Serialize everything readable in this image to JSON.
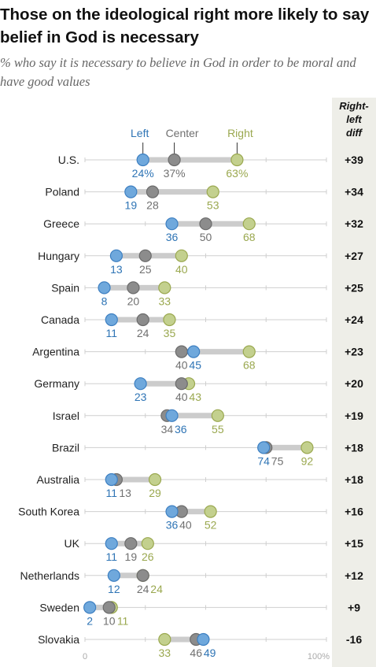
{
  "title": "Those on the ideological right more likely to say belief in God is necessary",
  "subtitle": "% who say it is necessary to believe in God in order to be moral and have good values",
  "colors": {
    "left": "#6fa8dc",
    "left_text": "#2e74b5",
    "center": "#8c8c8c",
    "center_text": "#707070",
    "right": "#c3d08e",
    "right_text": "#9aa84f",
    "diff_column": "#eeeee8"
  },
  "chart_data": {
    "type": "dot-plot",
    "title": "Those on the ideological right more likely to say belief in God is necessary",
    "subtitle": "% who say it is necessary to believe in God in order to be moral and have good values",
    "legend": [
      "Left",
      "Center",
      "Right"
    ],
    "diff_header": [
      "Right-",
      "left",
      "diff"
    ],
    "axis_labels": [
      "0",
      "100%"
    ],
    "xlim": [
      0,
      100
    ],
    "rows": [
      {
        "country": "U.S.",
        "left": 24,
        "center": 37,
        "right": 63,
        "left_label": "24%",
        "center_label": "37%",
        "right_label": "63%",
        "diff": "+39"
      },
      {
        "country": "Poland",
        "left": 19,
        "center": 28,
        "right": 53,
        "left_label": "19",
        "center_label": "28",
        "right_label": "53",
        "diff": "+34"
      },
      {
        "country": "Greece",
        "left": 36,
        "center": 50,
        "right": 68,
        "left_label": "36",
        "center_label": "50",
        "right_label": "68",
        "diff": "+32"
      },
      {
        "country": "Hungary",
        "left": 13,
        "center": 25,
        "right": 40,
        "left_label": "13",
        "center_label": "25",
        "right_label": "40",
        "diff": "+27"
      },
      {
        "country": "Spain",
        "left": 8,
        "center": 20,
        "right": 33,
        "left_label": "8",
        "center_label": "20",
        "right_label": "33",
        "diff": "+25"
      },
      {
        "country": "Canada",
        "left": 11,
        "center": 24,
        "right": 35,
        "left_label": "11",
        "center_label": "24",
        "right_label": "35",
        "diff": "+24"
      },
      {
        "country": "Argentina",
        "left": 45,
        "center": 40,
        "right": 68,
        "left_label": "45",
        "center_label": "40",
        "right_label": "68",
        "diff": "+23"
      },
      {
        "country": "Germany",
        "left": 23,
        "center": 40,
        "right": 43,
        "left_label": "23",
        "center_label": "40",
        "right_label": "43",
        "diff": "+20"
      },
      {
        "country": "Israel",
        "left": 36,
        "center": 34,
        "right": 55,
        "left_label": "36",
        "center_label": "34",
        "right_label": "55",
        "diff": "+19"
      },
      {
        "country": "Brazil",
        "left": 74,
        "center": 75,
        "right": 92,
        "left_label": "74",
        "center_label": "75",
        "right_label": "92",
        "diff": "+18"
      },
      {
        "country": "Australia",
        "left": 11,
        "center": 13,
        "right": 29,
        "left_label": "11",
        "center_label": "13",
        "right_label": "29",
        "diff": "+18"
      },
      {
        "country": "South Korea",
        "left": 36,
        "center": 40,
        "right": 52,
        "left_label": "36",
        "center_label": "40",
        "right_label": "52",
        "diff": "+16"
      },
      {
        "country": "UK",
        "left": 11,
        "center": 19,
        "right": 26,
        "left_label": "11",
        "center_label": "19",
        "right_label": "26",
        "diff": "+15"
      },
      {
        "country": "Netherlands",
        "left": 12,
        "center": 24,
        "right": 24,
        "left_label": "12",
        "center_label": "24",
        "right_label": "24",
        "diff": "+12"
      },
      {
        "country": "Sweden",
        "left": 2,
        "center": 10,
        "right": 11,
        "left_label": "2",
        "center_label": "10",
        "right_label": "11",
        "diff": "+9"
      },
      {
        "country": "Slovakia",
        "left": 49,
        "center": 46,
        "right": 33,
        "left_label": "49",
        "center_label": "46",
        "right_label": "33",
        "diff": "-16"
      }
    ]
  }
}
